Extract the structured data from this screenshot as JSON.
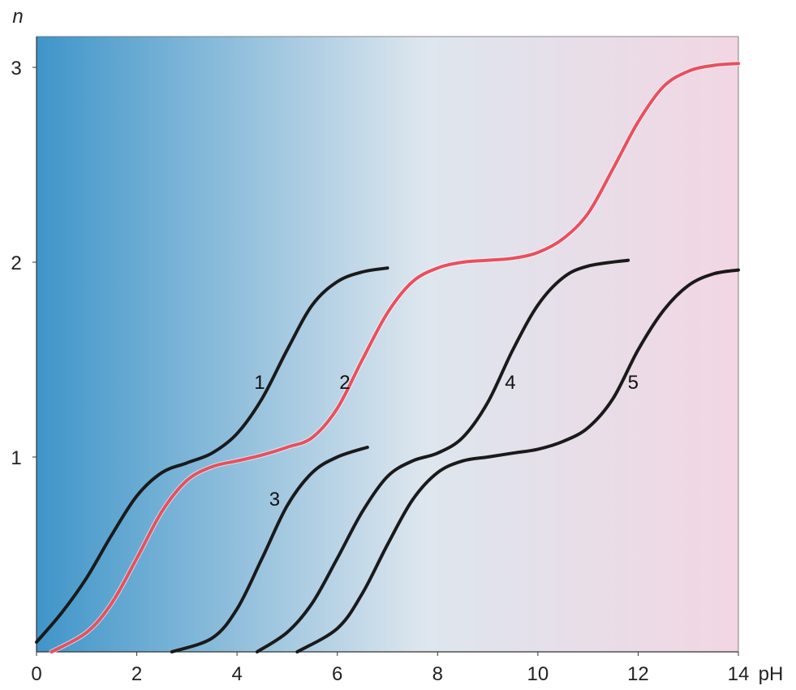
{
  "chart_data": {
    "type": "line",
    "xlabel": "pH",
    "ylabel": "n",
    "xlim": [
      0,
      14
    ],
    "ylim": [
      0,
      3
    ],
    "x_ticks": [
      "0",
      "2",
      "4",
      "6",
      "8",
      "10",
      "12",
      "14"
    ],
    "y_ticks": [
      "1",
      "2",
      "3"
    ],
    "grid": false,
    "legend": "none",
    "background": {
      "left_color": "#3f95c9",
      "mid_color": "#dde6ee",
      "right_color": "#f2d6e3"
    },
    "series": [
      {
        "name": "1",
        "color": "#1a1a1a",
        "highlight": false,
        "x": [
          0.0,
          0.5,
          1.0,
          1.5,
          2.0,
          2.5,
          3.0,
          3.5,
          4.0,
          4.5,
          5.0,
          5.5,
          6.0,
          6.5,
          7.0
        ],
        "y": [
          0.05,
          0.2,
          0.38,
          0.6,
          0.8,
          0.92,
          0.97,
          1.02,
          1.12,
          1.3,
          1.55,
          1.78,
          1.9,
          1.95,
          1.97
        ]
      },
      {
        "name": "2",
        "color": "#e8505e",
        "highlight": true,
        "x": [
          0.3,
          1.0,
          1.5,
          2.0,
          2.5,
          3.0,
          3.5,
          4.0,
          4.5,
          5.0,
          5.5,
          6.0,
          6.5,
          7.0,
          7.5,
          8.0,
          8.5,
          9.0,
          9.5,
          10.0,
          10.5,
          11.0,
          11.5,
          12.0,
          12.5,
          13.0,
          13.5,
          14.0
        ],
        "y": [
          0.0,
          0.1,
          0.25,
          0.48,
          0.72,
          0.88,
          0.95,
          0.98,
          1.01,
          1.05,
          1.1,
          1.25,
          1.5,
          1.74,
          1.9,
          1.97,
          2.0,
          2.01,
          2.02,
          2.05,
          2.12,
          2.25,
          2.48,
          2.72,
          2.9,
          2.98,
          3.01,
          3.02
        ]
      },
      {
        "name": "3",
        "color": "#1a1a1a",
        "highlight": false,
        "x": [
          2.7,
          3.5,
          4.0,
          4.5,
          5.0,
          5.5,
          6.0,
          6.6
        ],
        "y": [
          0.0,
          0.07,
          0.22,
          0.48,
          0.75,
          0.92,
          1.0,
          1.05
        ]
      },
      {
        "name": "4",
        "color": "#1a1a1a",
        "highlight": false,
        "x": [
          4.4,
          5.0,
          5.5,
          6.0,
          6.5,
          7.0,
          7.5,
          8.0,
          8.5,
          9.0,
          9.5,
          10.0,
          10.5,
          11.0,
          11.8
        ],
        "y": [
          0.0,
          0.1,
          0.25,
          0.48,
          0.72,
          0.9,
          0.98,
          1.02,
          1.1,
          1.28,
          1.55,
          1.78,
          1.92,
          1.98,
          2.01
        ]
      },
      {
        "name": "5",
        "color": "#1a1a1a",
        "highlight": false,
        "x": [
          5.2,
          6.0,
          6.5,
          7.0,
          7.5,
          8.0,
          8.5,
          9.0,
          9.5,
          10.0,
          10.5,
          11.0,
          11.5,
          12.0,
          12.5,
          13.0,
          13.5,
          14.0
        ],
        "y": [
          0.0,
          0.12,
          0.3,
          0.55,
          0.78,
          0.92,
          0.98,
          1.0,
          1.02,
          1.04,
          1.08,
          1.15,
          1.3,
          1.55,
          1.75,
          1.88,
          1.94,
          1.96
        ]
      }
    ],
    "curve_labels": [
      {
        "text": "1",
        "x": 4.45,
        "y": 1.35
      },
      {
        "text": "2",
        "x": 6.15,
        "y": 1.35
      },
      {
        "text": "3",
        "x": 4.75,
        "y": 0.75
      },
      {
        "text": "4",
        "x": 9.45,
        "y": 1.35
      },
      {
        "text": "5",
        "x": 11.9,
        "y": 1.35
      }
    ]
  }
}
